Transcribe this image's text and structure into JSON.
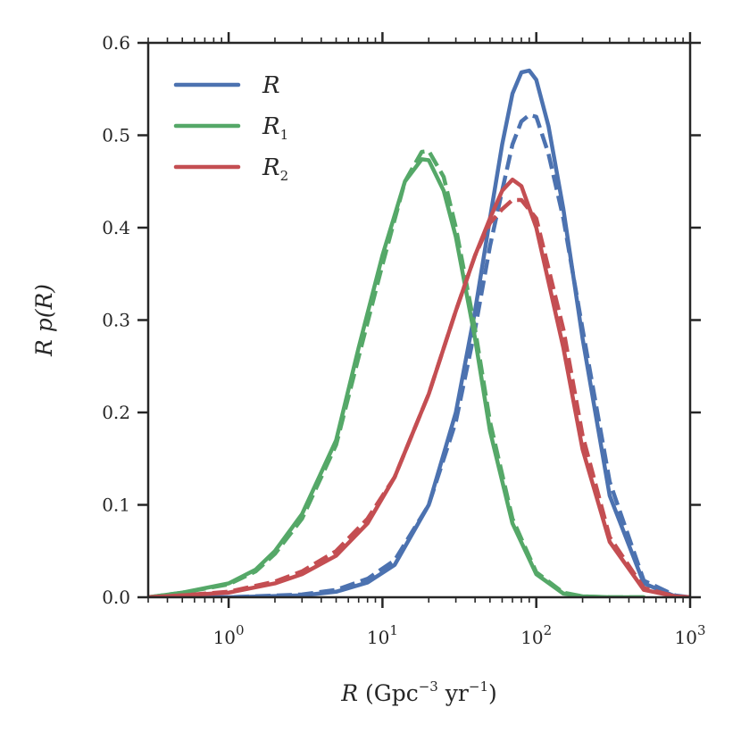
{
  "chart_data": {
    "type": "line",
    "xscale": "log",
    "xlim": [
      0.3,
      1000
    ],
    "ylim": [
      0.0,
      0.6
    ],
    "xticks": [
      1,
      10,
      100,
      1000
    ],
    "xtick_labels": [
      {
        "base": "10",
        "exp": "0"
      },
      {
        "base": "10",
        "exp": "1"
      },
      {
        "base": "10",
        "exp": "2"
      },
      {
        "base": "10",
        "exp": "3"
      }
    ],
    "yticks": [
      0.0,
      0.1,
      0.2,
      0.3,
      0.4,
      0.5,
      0.6
    ],
    "ytick_labels": [
      "0.0",
      "0.1",
      "0.2",
      "0.3",
      "0.4",
      "0.5",
      "0.6"
    ],
    "xlabel": {
      "var": "R",
      "text": " (Gpc",
      "exp1": "−3",
      "mid": " yr",
      "exp2": "−1",
      "end": ")"
    },
    "ylabel": {
      "text": "R p(R)"
    },
    "legend_position": "top-left",
    "series": [
      {
        "name": "R",
        "label_base": "R",
        "label_sub": "",
        "color": "#4c72b0",
        "style": "solid",
        "x": [
          0.3,
          1,
          3,
          5,
          8,
          12,
          20,
          30,
          40,
          50,
          60,
          70,
          80,
          90,
          100,
          120,
          150,
          200,
          300,
          500,
          800,
          1000
        ],
        "y": [
          0.0,
          0.0,
          0.002,
          0.006,
          0.016,
          0.035,
          0.1,
          0.2,
          0.31,
          0.41,
          0.49,
          0.545,
          0.568,
          0.57,
          0.56,
          0.51,
          0.42,
          0.28,
          0.11,
          0.015,
          0.001,
          0.0
        ]
      },
      {
        "name": "R (dashed)",
        "label_base": "",
        "label_sub": "",
        "color": "#4c72b0",
        "style": "dashed",
        "x": [
          0.3,
          1,
          3,
          5,
          8,
          12,
          20,
          30,
          40,
          50,
          60,
          70,
          80,
          90,
          100,
          120,
          150,
          200,
          300,
          500,
          800,
          1000
        ],
        "y": [
          0.0,
          0.0,
          0.003,
          0.008,
          0.02,
          0.04,
          0.1,
          0.19,
          0.29,
          0.38,
          0.44,
          0.49,
          0.515,
          0.522,
          0.52,
          0.48,
          0.41,
          0.29,
          0.125,
          0.018,
          0.002,
          0.0
        ]
      },
      {
        "name": "R1",
        "label_base": "R",
        "label_sub": "1",
        "color": "#55a868",
        "style": "solid",
        "x": [
          0.3,
          0.5,
          1,
          1.5,
          2,
          3,
          5,
          7,
          10,
          14,
          18,
          20,
          25,
          30,
          40,
          50,
          70,
          100,
          150,
          200,
          300,
          500
        ],
        "y": [
          0.0,
          0.005,
          0.015,
          0.03,
          0.05,
          0.09,
          0.17,
          0.27,
          0.37,
          0.45,
          0.474,
          0.473,
          0.44,
          0.39,
          0.28,
          0.18,
          0.08,
          0.025,
          0.004,
          0.001,
          0.0,
          0.0
        ]
      },
      {
        "name": "R1 (dashed)",
        "label_base": "",
        "label_sub": "",
        "color": "#55a868",
        "style": "dashed",
        "x": [
          0.3,
          0.5,
          1,
          1.5,
          2,
          3,
          5,
          7,
          10,
          14,
          18,
          20,
          25,
          30,
          40,
          50,
          70,
          100,
          150,
          200,
          300,
          500
        ],
        "y": [
          0.0,
          0.005,
          0.014,
          0.028,
          0.047,
          0.085,
          0.165,
          0.26,
          0.36,
          0.45,
          0.482,
          0.483,
          0.455,
          0.4,
          0.29,
          0.19,
          0.085,
          0.027,
          0.005,
          0.001,
          0.0,
          0.0
        ]
      },
      {
        "name": "R2",
        "label_base": "R",
        "label_sub": "2",
        "color": "#c44e52",
        "style": "solid",
        "x": [
          0.3,
          0.5,
          1,
          2,
          3,
          5,
          8,
          12,
          20,
          30,
          40,
          50,
          60,
          70,
          80,
          100,
          150,
          200,
          300,
          500,
          800,
          1000
        ],
        "y": [
          0.0,
          0.002,
          0.005,
          0.015,
          0.025,
          0.045,
          0.08,
          0.13,
          0.22,
          0.31,
          0.37,
          0.41,
          0.44,
          0.452,
          0.445,
          0.4,
          0.27,
          0.16,
          0.06,
          0.008,
          0.001,
          0.0
        ]
      },
      {
        "name": "R2 (dashed)",
        "label_base": "",
        "label_sub": "",
        "color": "#c44e52",
        "style": "dashed",
        "x": [
          0.3,
          0.5,
          1,
          2,
          3,
          5,
          8,
          12,
          20,
          30,
          40,
          50,
          60,
          70,
          80,
          100,
          150,
          200,
          300,
          500,
          800,
          1000
        ],
        "y": [
          0.0,
          0.002,
          0.006,
          0.017,
          0.028,
          0.05,
          0.085,
          0.13,
          0.22,
          0.31,
          0.37,
          0.405,
          0.42,
          0.43,
          0.43,
          0.41,
          0.29,
          0.175,
          0.065,
          0.01,
          0.001,
          0.0
        ]
      }
    ]
  }
}
